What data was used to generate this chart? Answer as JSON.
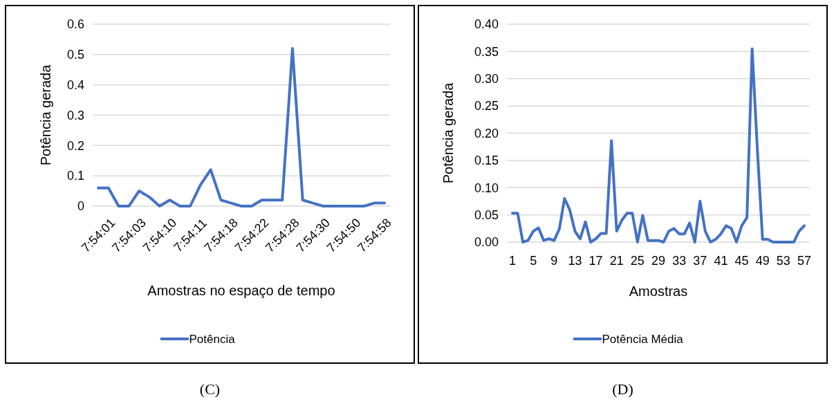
{
  "chart_data": [
    {
      "type": "line",
      "xlabel": "Amostras no espaço de tempo",
      "ylabel": "Potência gerada",
      "categories": [
        "7:54:01",
        null,
        null,
        "7:54:03",
        null,
        null,
        "7:54:10",
        null,
        null,
        "7:54:11",
        null,
        null,
        "7:54:18",
        null,
        null,
        "7:54:22",
        null,
        null,
        "7:54:28",
        null,
        null,
        "7:54:30",
        null,
        null,
        "7:54:50",
        null,
        null,
        "7:54:58",
        null
      ],
      "series": [
        {
          "name": "Potência",
          "color": "#4472c4",
          "values": [
            0.06,
            0.06,
            0,
            0,
            0.05,
            0.03,
            0,
            0.02,
            0,
            0,
            0.07,
            0.12,
            0.02,
            0.01,
            0,
            0,
            0.02,
            0.02,
            0.02,
            0.52,
            0.02,
            0.01,
            0,
            0,
            0,
            0,
            0,
            0.01,
            0.01
          ]
        }
      ],
      "ylim": [
        0,
        0.6
      ],
      "yticks": [
        0,
        0.1,
        0.2,
        0.3,
        0.4,
        0.5,
        0.6
      ],
      "grid": "y",
      "legend": "bottom",
      "annotations": [
        "(C)"
      ]
    },
    {
      "type": "line",
      "xlabel": "Amostras",
      "ylabel": "Potência gerada",
      "categories": [
        "1",
        null,
        null,
        null,
        "5",
        null,
        null,
        null,
        "9",
        null,
        null,
        null,
        "13",
        null,
        null,
        null,
        "17",
        null,
        null,
        null,
        "21",
        null,
        null,
        null,
        "25",
        null,
        null,
        null,
        "29",
        null,
        null,
        null,
        "33",
        null,
        null,
        null,
        "37",
        null,
        null,
        null,
        "41",
        null,
        null,
        null,
        "45",
        null,
        null,
        null,
        "49",
        null,
        null,
        null,
        "53",
        null,
        null,
        null,
        "57"
      ],
      "series": [
        {
          "name": "Potência Média",
          "color": "#4472c4",
          "values": [
            0.053,
            0.053,
            0,
            0.003,
            0.02,
            0.026,
            0.003,
            0.006,
            0.003,
            0.024,
            0.08,
            0.059,
            0.02,
            0.006,
            0.037,
            0,
            0.006,
            0.016,
            0.016,
            0.186,
            0.02,
            0.04,
            0.053,
            0.053,
            0,
            0.049,
            0.003,
            0.003,
            0.003,
            0,
            0.02,
            0.025,
            0.015,
            0.015,
            0.035,
            0,
            0.075,
            0.02,
            0,
            0.005,
            0.015,
            0.03,
            0.025,
            0,
            0.03,
            0.045,
            0.355,
            0.17,
            0.005,
            0.005,
            0,
            0,
            0,
            0,
            0,
            0.02,
            0.03
          ]
        }
      ],
      "ylim": [
        0,
        0.4
      ],
      "yticks": [
        {
          "value": 0,
          "label": "0.00"
        },
        {
          "value": 0.05,
          "label": "0.05"
        },
        {
          "value": 0.1,
          "label": "0.10"
        },
        {
          "value": 0.15,
          "label": "0.15"
        },
        {
          "value": 0.2,
          "label": "0.20"
        },
        {
          "value": 0.25,
          "label": "0.25"
        },
        {
          "value": 0.3,
          "label": "0.30"
        },
        {
          "value": 0.35,
          "label": "0.35"
        },
        {
          "value": 0.4,
          "label": "0.40"
        }
      ],
      "grid": "y",
      "legend": "bottom",
      "annotations": [
        "(D)"
      ]
    }
  ]
}
